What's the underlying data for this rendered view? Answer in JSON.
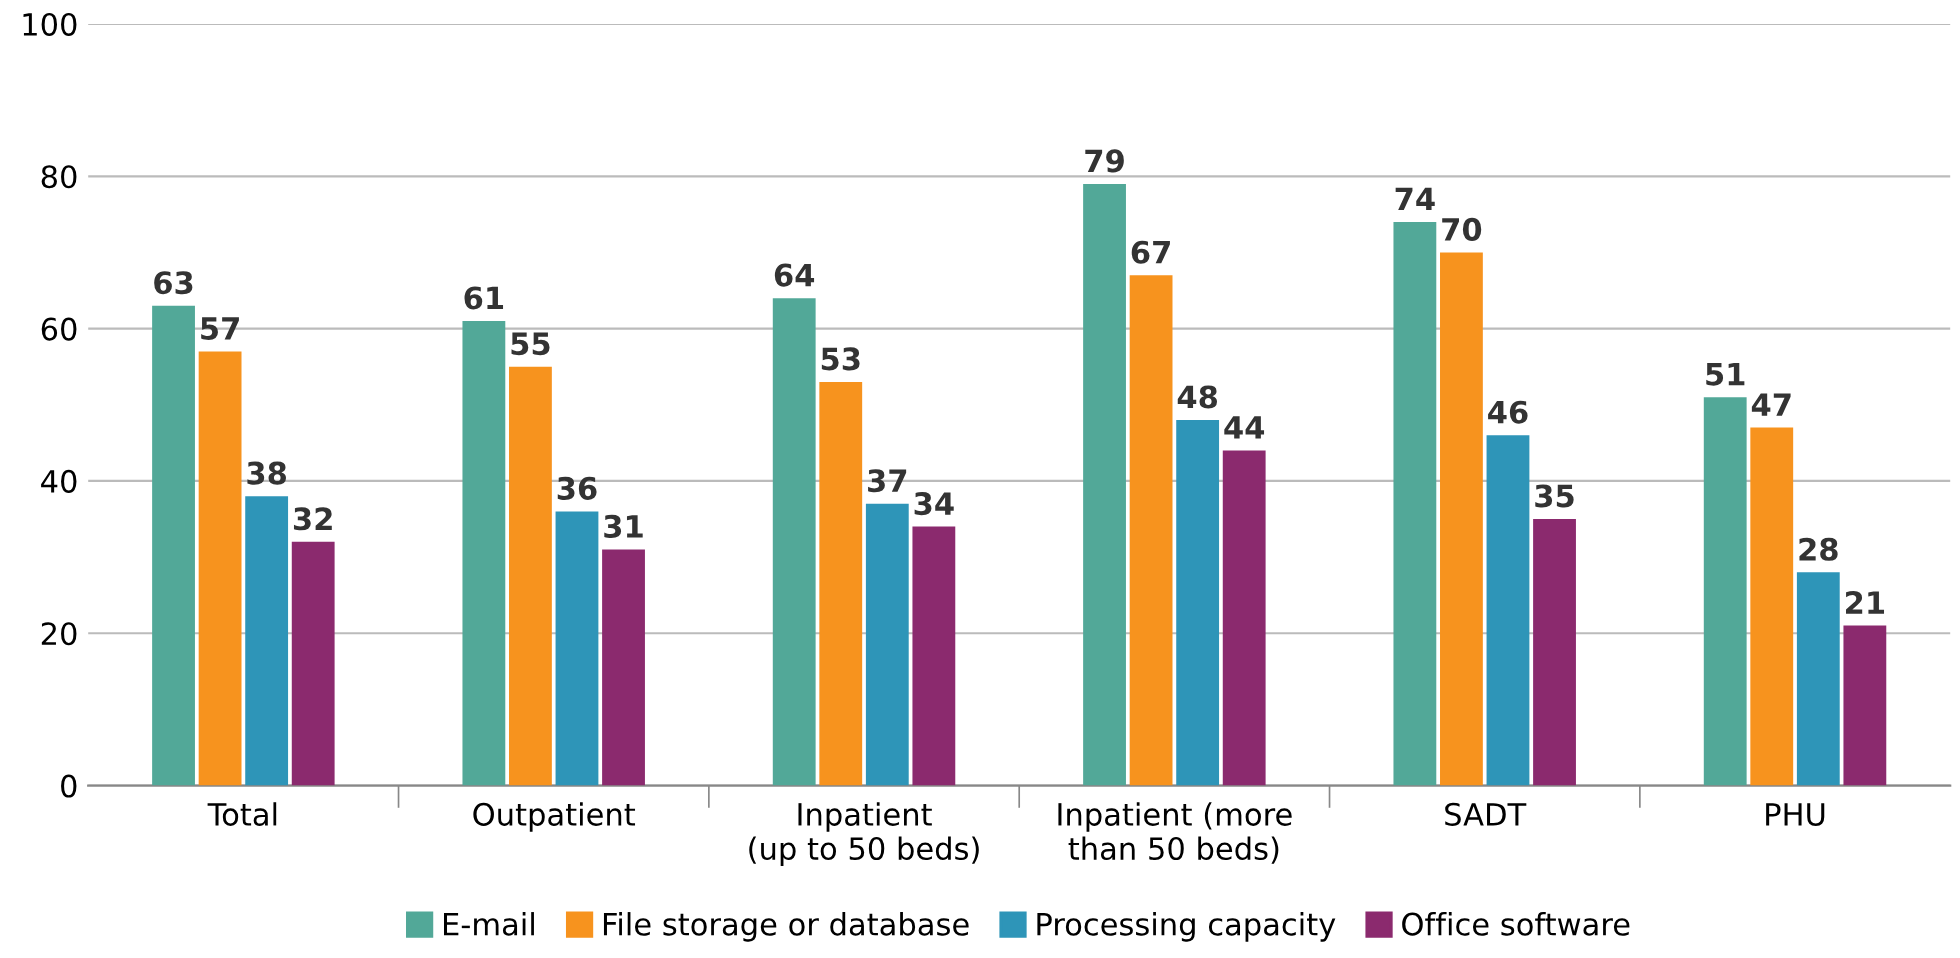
{
  "chart_data": {
    "type": "bar",
    "categories": [
      "Total",
      "Outpatient",
      "Inpatient\n(up to 50 beds)",
      "Inpatient (more\nthan 50 beds)",
      "SADT",
      "PHU"
    ],
    "series": [
      {
        "name": "E-mail",
        "color": "#52a898",
        "values": [
          63,
          61,
          64,
          79,
          74,
          51
        ]
      },
      {
        "name": "File storage or database",
        "color": "#f7931e",
        "values": [
          57,
          55,
          53,
          67,
          70,
          47
        ]
      },
      {
        "name": "Processing capacity",
        "color": "#2e95b8",
        "values": [
          38,
          36,
          37,
          48,
          46,
          28
        ]
      },
      {
        "name": "Office software",
        "color": "#8b2a6e",
        "values": [
          32,
          31,
          34,
          44,
          35,
          21
        ]
      }
    ],
    "ylim": [
      0,
      100
    ],
    "yticks": [
      0,
      20,
      40,
      60,
      80,
      100
    ],
    "grid": "y",
    "legend": "bottom",
    "data_labels": true
  }
}
